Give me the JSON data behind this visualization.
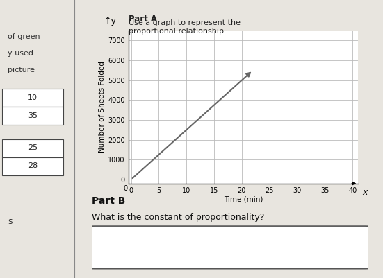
{
  "xlabel": "Time (min)",
  "ylabel": "Number of Sheets Folded",
  "x_ticks": [
    0,
    5,
    10,
    15,
    20,
    25,
    30,
    35,
    40
  ],
  "y_ticks": [
    0,
    1000,
    2000,
    3000,
    4000,
    5000,
    6000,
    7000
  ],
  "xlim": [
    -0.5,
    41
  ],
  "ylim": [
    -200,
    7500
  ],
  "line_x": [
    0,
    22
  ],
  "line_y": [
    0,
    5500
  ],
  "line_color": "#999999",
  "arrow_color": "#666666",
  "grid_color": "#bbbbbb",
  "bg_color": "#f0eeea",
  "page_bg": "#e8e5df",
  "axis_label_fontsize": 7.5,
  "tick_fontsize": 7,
  "left_labels": [
    "of green",
    "y used",
    "picture"
  ],
  "left_boxes": [
    "10",
    "35",
    "25",
    "28"
  ],
  "part_b_text": "Part B",
  "question_text": "What is the constant of proportionality?",
  "part_a_text": "Part A",
  "part_a_sub": "Use a graph to represent the\nproportional relationship."
}
